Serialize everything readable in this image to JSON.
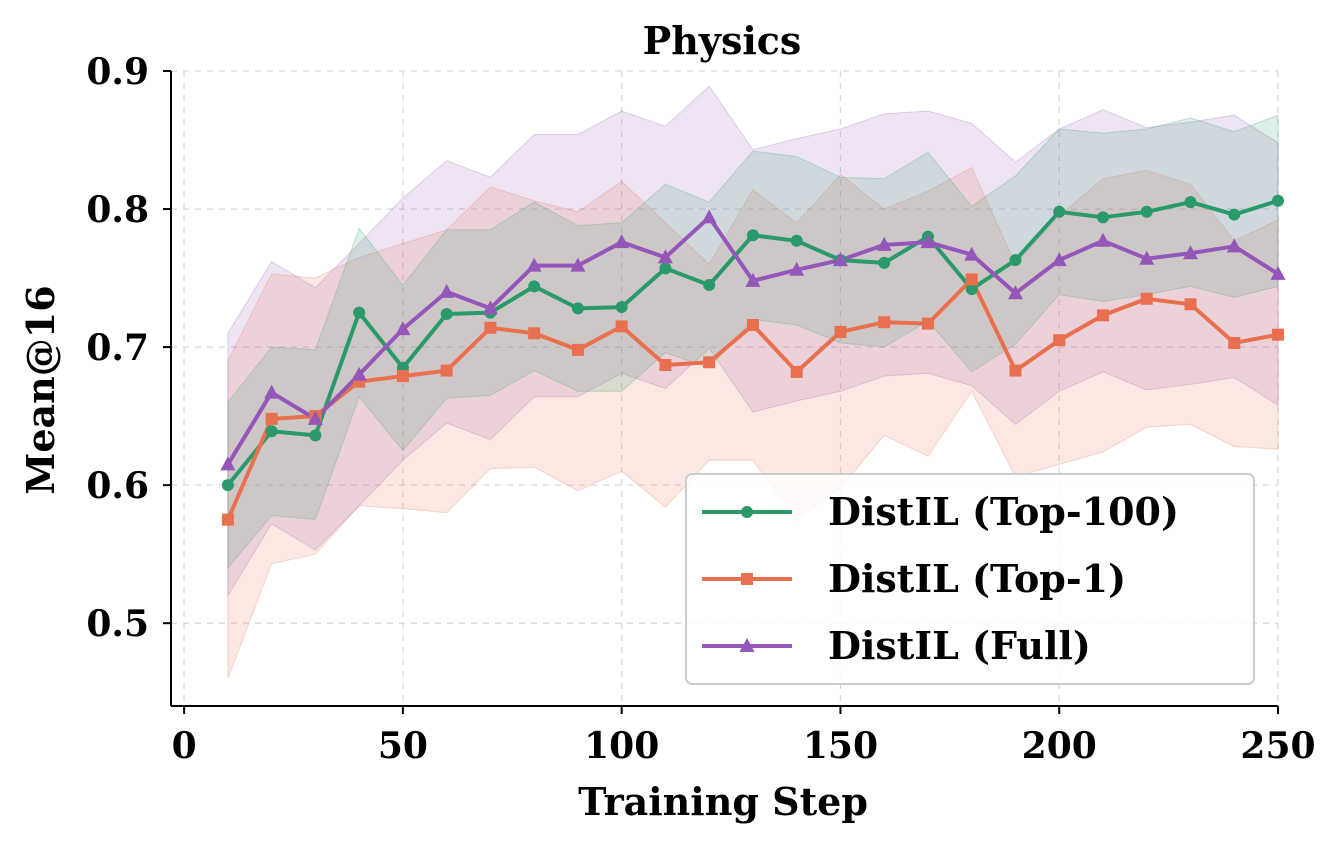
{
  "chart_data": {
    "type": "line",
    "title": "Physics",
    "xlabel": "Training Step",
    "ylabel": "Mean@16",
    "xlim": [
      -3,
      250
    ],
    "ylim": [
      0.44,
      0.9
    ],
    "xticks": [
      0,
      50,
      100,
      150,
      200,
      250
    ],
    "yticks": [
      0.5,
      0.6,
      0.7,
      0.8,
      0.9
    ],
    "xtick_labels": [
      "0",
      "50",
      "100",
      "150",
      "200",
      "250"
    ],
    "ytick_labels": [
      "0.5",
      "0.6",
      "0.7",
      "0.8",
      "0.9"
    ],
    "grid": true,
    "legend_position": "lower-right",
    "x": [
      10,
      20,
      30,
      40,
      50,
      60,
      70,
      80,
      90,
      100,
      110,
      120,
      130,
      140,
      150,
      160,
      170,
      180,
      190,
      200,
      210,
      220,
      230,
      240,
      250
    ],
    "series": [
      {
        "name": "DistIL (Top-100)",
        "color": "#2a9a6a",
        "marker": "circle",
        "values": [
          0.6,
          0.639,
          0.636,
          0.725,
          0.685,
          0.724,
          0.725,
          0.744,
          0.728,
          0.729,
          0.757,
          0.745,
          0.781,
          0.777,
          0.763,
          0.761,
          0.78,
          0.742,
          0.763,
          0.798,
          0.794,
          0.798,
          0.805,
          0.796,
          0.806
        ],
        "upper": [
          0.66,
          0.7,
          0.698,
          0.786,
          0.745,
          0.785,
          0.785,
          0.805,
          0.788,
          0.79,
          0.818,
          0.805,
          0.842,
          0.838,
          0.823,
          0.822,
          0.841,
          0.802,
          0.824,
          0.858,
          0.855,
          0.858,
          0.866,
          0.856,
          0.868
        ],
        "lower": [
          0.54,
          0.578,
          0.575,
          0.664,
          0.625,
          0.663,
          0.665,
          0.683,
          0.668,
          0.668,
          0.696,
          0.685,
          0.72,
          0.716,
          0.703,
          0.7,
          0.719,
          0.682,
          0.702,
          0.738,
          0.733,
          0.738,
          0.744,
          0.736,
          0.744
        ]
      },
      {
        "name": "DistIL (Top-1)",
        "color": "#e8704f",
        "marker": "square",
        "values": [
          0.575,
          0.648,
          0.65,
          0.675,
          0.679,
          0.683,
          0.714,
          0.71,
          0.698,
          0.715,
          0.687,
          0.689,
          0.716,
          0.682,
          0.711,
          0.718,
          0.717,
          0.749,
          0.683,
          0.705,
          0.723,
          0.735,
          0.731,
          0.703,
          0.709
        ],
        "upper": [
          0.69,
          0.753,
          0.75,
          0.765,
          0.775,
          0.785,
          0.816,
          0.806,
          0.798,
          0.82,
          0.79,
          0.76,
          0.814,
          0.79,
          0.825,
          0.8,
          0.813,
          0.83,
          0.76,
          0.795,
          0.822,
          0.828,
          0.818,
          0.777,
          0.792
        ],
        "lower": [
          0.46,
          0.543,
          0.55,
          0.585,
          0.583,
          0.58,
          0.612,
          0.613,
          0.596,
          0.61,
          0.584,
          0.618,
          0.618,
          0.575,
          0.598,
          0.636,
          0.621,
          0.668,
          0.606,
          0.615,
          0.624,
          0.642,
          0.644,
          0.628,
          0.626
        ]
      },
      {
        "name": "DistIL (Full)",
        "color": "#9456b8",
        "marker": "triangle",
        "values": [
          0.615,
          0.667,
          0.648,
          0.68,
          0.713,
          0.74,
          0.728,
          0.759,
          0.759,
          0.776,
          0.765,
          0.794,
          0.748,
          0.756,
          0.763,
          0.774,
          0.776,
          0.767,
          0.739,
          0.763,
          0.777,
          0.764,
          0.768,
          0.773,
          0.753
        ]
      }
    ]
  }
}
